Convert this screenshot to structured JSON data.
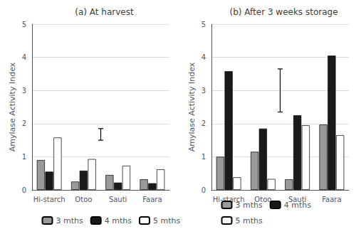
{
  "chart_data": [
    {
      "type": "bar",
      "title": "(a) At harvest",
      "ylabel": "Amylase Activity Index",
      "categories": [
        "Hi-starch",
        "Otoo",
        "Sauti",
        "Faara"
      ],
      "series": [
        {
          "name": "3 mths",
          "color": "#999999",
          "values": [
            0.9,
            0.25,
            0.45,
            0.32
          ]
        },
        {
          "name": "4 mths",
          "color": "#1a1a1a",
          "values": [
            0.55,
            0.58,
            0.22,
            0.2
          ]
        },
        {
          "name": "5 mths",
          "color": "#ffffff",
          "values": [
            1.58,
            0.93,
            0.73,
            0.62
          ]
        }
      ],
      "lsd": {
        "x": 1.5,
        "low": 1.5,
        "high": 1.85
      },
      "ylim": [
        0,
        5
      ],
      "yticks": [
        0,
        1,
        2,
        3,
        4,
        5
      ],
      "grid": true,
      "legend": "bottom"
    },
    {
      "type": "bar",
      "title": "(b) After 3 weeks storage",
      "ylabel": "Amylase Activity Index",
      "categories": [
        "Hi-starch",
        "Otoo",
        "Sauti",
        "Faara"
      ],
      "series": [
        {
          "name": "3 mths",
          "color": "#999999",
          "values": [
            1.0,
            1.15,
            0.32,
            1.97
          ]
        },
        {
          "name": "4 mths",
          "color": "#1a1a1a",
          "values": [
            3.58,
            1.85,
            2.25,
            4.05
          ]
        },
        {
          "name": "5 mths",
          "color": "#ffffff",
          "values": [
            0.38,
            0.33,
            1.95,
            1.65
          ]
        }
      ],
      "lsd": {
        "x": 1.5,
        "low": 2.35,
        "high": 3.65
      },
      "ylim": [
        0,
        5
      ],
      "yticks": [
        0,
        1,
        2,
        3,
        4,
        5
      ],
      "grid": true,
      "legend": "bottom"
    }
  ]
}
